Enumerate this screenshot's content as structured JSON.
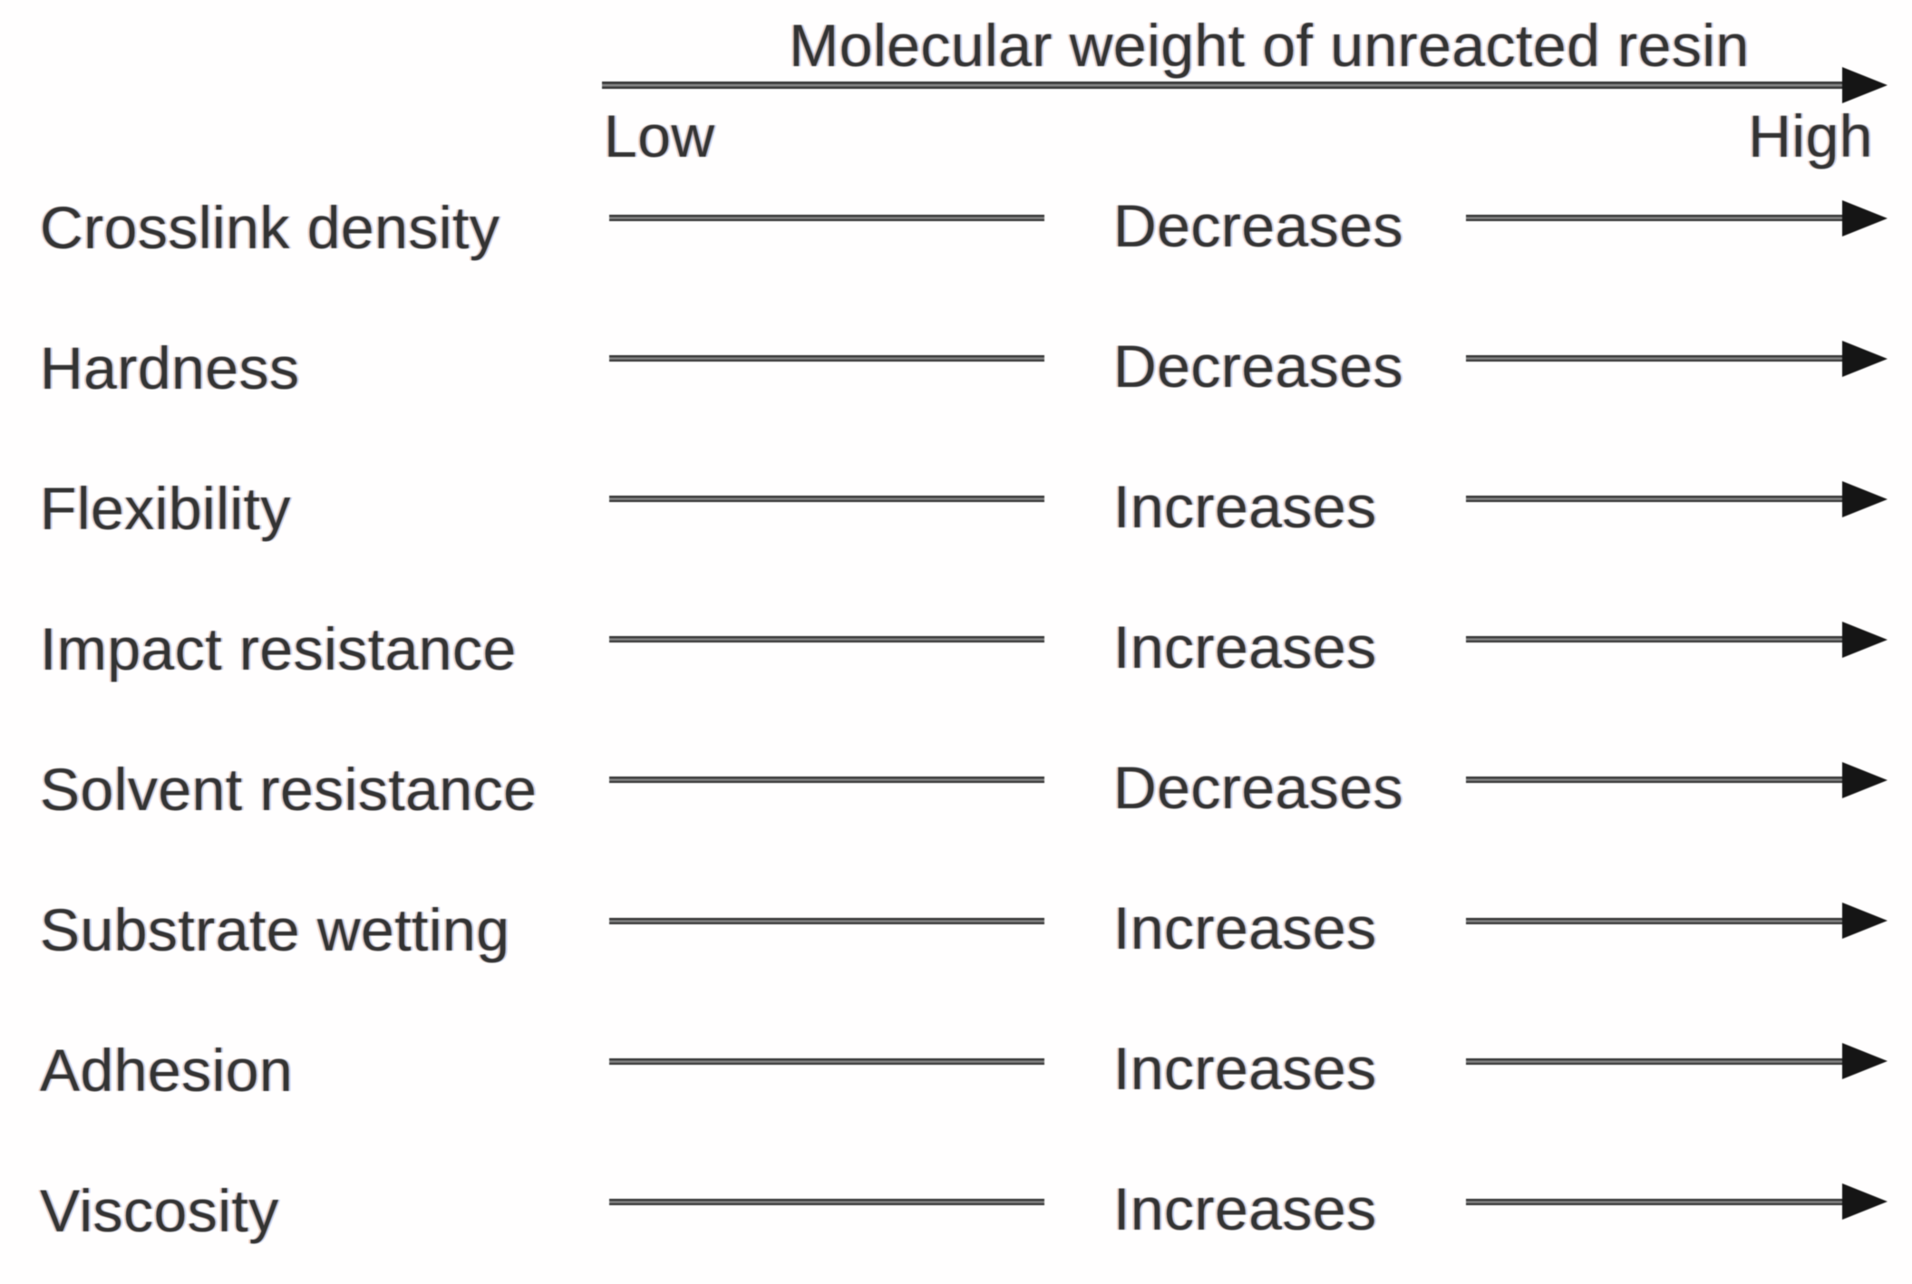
{
  "header": {
    "title": "Molecular weight of unreacted resin",
    "axis_left_label": "Low",
    "axis_right_label": "High"
  },
  "rows": [
    {
      "label": "Crosslink density",
      "trend": "Decreases"
    },
    {
      "label": "Hardness",
      "trend": "Decreases"
    },
    {
      "label": "Flexibility",
      "trend": "Increases"
    },
    {
      "label": "Impact resistance",
      "trend": "Increases"
    },
    {
      "label": "Solvent resistance",
      "trend": "Decreases"
    },
    {
      "label": "Substrate wetting",
      "trend": "Increases"
    },
    {
      "label": "Adhesion",
      "trend": "Increases"
    },
    {
      "label": "Viscosity",
      "trend": "Increases"
    }
  ],
  "colors": {
    "text": "#333333",
    "line": "#2f2f2f",
    "arrowhead": "#151515",
    "background": "#fffefe"
  }
}
